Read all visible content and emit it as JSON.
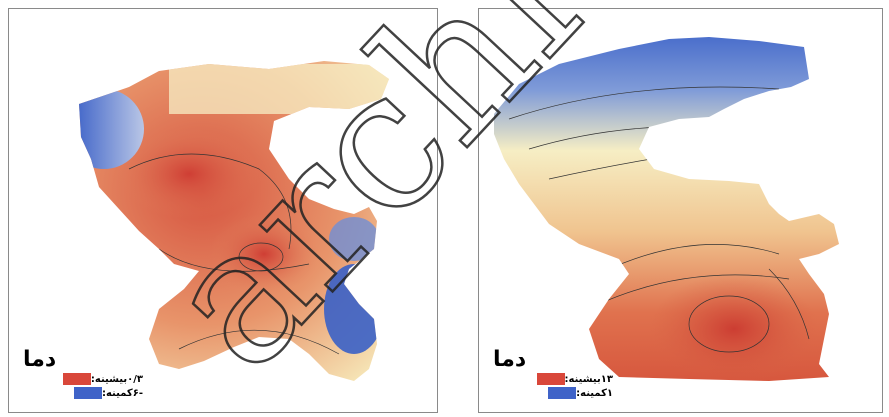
{
  "maps": [
    {
      "legend": {
        "title": "دما",
        "max_label": "بیشینه:",
        "max_value": "۰/۳",
        "min_label": "کمینه:",
        "min_value": "-۶",
        "max_color": "#d9473a",
        "min_color": "#3f63c8"
      }
    },
    {
      "legend": {
        "title": "دما",
        "max_label": "بیشینه:",
        "max_value": "۱۳",
        "min_label": "کمینه:",
        "min_value": "۱",
        "max_color": "#d9473a",
        "min_color": "#3f63c8"
      }
    }
  ],
  "watermark": {
    "text": "archive.ol"
  },
  "colors": {
    "warm": "#d9473a",
    "mid": "#f5efc4",
    "cold": "#3f63c8"
  }
}
